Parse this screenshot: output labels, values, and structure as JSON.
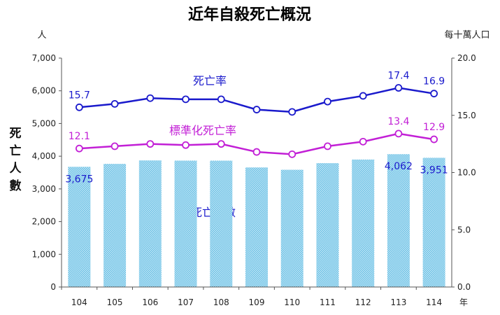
{
  "chart_data": {
    "type": "bar",
    "title": "近年自殺死亡概況",
    "categories": [
      "104",
      "105",
      "106",
      "107",
      "108",
      "109",
      "110",
      "111",
      "112",
      "113",
      "114"
    ],
    "x_unit": "年",
    "left_axis": {
      "unit": "人",
      "label_chars": [
        "死",
        "亡",
        "人",
        "數"
      ],
      "ylim": [
        0,
        7000
      ],
      "ticks": [
        "0",
        "1,000",
        "2,000",
        "3,000",
        "4,000",
        "5,000",
        "6,000",
        "7,000"
      ]
    },
    "right_axis": {
      "unit": "每十萬人口",
      "ylim": [
        0,
        20
      ],
      "ticks": [
        "0.0",
        "5.0",
        "10.0",
        "15.0",
        "20.0"
      ]
    },
    "series": [
      {
        "name": "死亡人數",
        "type": "bar",
        "axis": "left",
        "color": "#8fd0ec",
        "values": [
          3675,
          3765,
          3871,
          3865,
          3864,
          3656,
          3585,
          3787,
          3898,
          4062,
          3951
        ],
        "data_labels": {
          "0": "3,675",
          "9": "4,062",
          "10": "3,951"
        }
      },
      {
        "name": "死亡率",
        "type": "line",
        "axis": "right",
        "color": "#1a1acc",
        "values": [
          15.7,
          16.0,
          16.5,
          16.4,
          16.4,
          15.5,
          15.3,
          16.2,
          16.7,
          17.4,
          16.9
        ],
        "data_labels": {
          "0": "15.7",
          "9": "17.4",
          "10": "16.9"
        }
      },
      {
        "name": "標準化死亡率",
        "type": "line",
        "axis": "right",
        "color": "#c21fd6",
        "values": [
          12.1,
          12.3,
          12.5,
          12.4,
          12.5,
          11.8,
          11.6,
          12.3,
          12.7,
          13.4,
          12.9
        ],
        "data_labels": {
          "0": "12.1",
          "9": "13.4",
          "10": "12.9"
        }
      }
    ],
    "legend_placement": "inline labels",
    "grid": false
  }
}
